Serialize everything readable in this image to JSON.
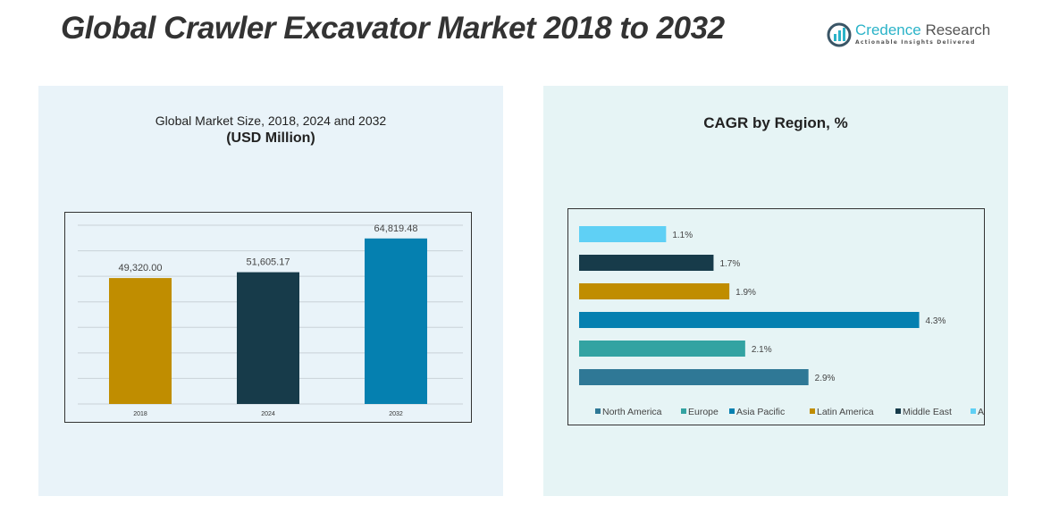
{
  "header": {
    "title": "Global Crawler Excavator Market 2018 to 2032"
  },
  "logo": {
    "name_part1": "Credence",
    "name_part2": "Research",
    "tagline": "Actionable Insights Delivered"
  },
  "chart_data": [
    {
      "type": "bar",
      "title": "Global Market Size, 2018, 2024 and 2032",
      "subtitle": "(USD Million)",
      "categories": [
        "2018",
        "2024",
        "2032"
      ],
      "values": [
        49320.0,
        51605.17,
        64819.48
      ],
      "data_labels": [
        "49,320.00",
        "51,605.17",
        "64,819.48"
      ],
      "colors": [
        "#c08d00",
        "#173b4a",
        "#0580b0"
      ],
      "ylim": [
        0,
        70000
      ],
      "grid": true
    },
    {
      "type": "bar",
      "orientation": "horizontal",
      "title": "CAGR by Region, %",
      "categories": [
        "North America",
        "Europe",
        "Asia Pacific",
        "Latin America",
        "Middle East",
        "Africa"
      ],
      "values": [
        2.9,
        2.1,
        4.3,
        1.9,
        1.7,
        1.1
      ],
      "data_labels": [
        "2.9%",
        "2.1%",
        "4.3%",
        "1.9%",
        "1.7%",
        "1.1%"
      ],
      "colors": [
        "#2f7896",
        "#33a3a2",
        "#0580b0",
        "#c08d00",
        "#173b4a",
        "#5fd0f5"
      ],
      "xlim": [
        0,
        5
      ],
      "grid": false,
      "legend": "bottom"
    }
  ]
}
